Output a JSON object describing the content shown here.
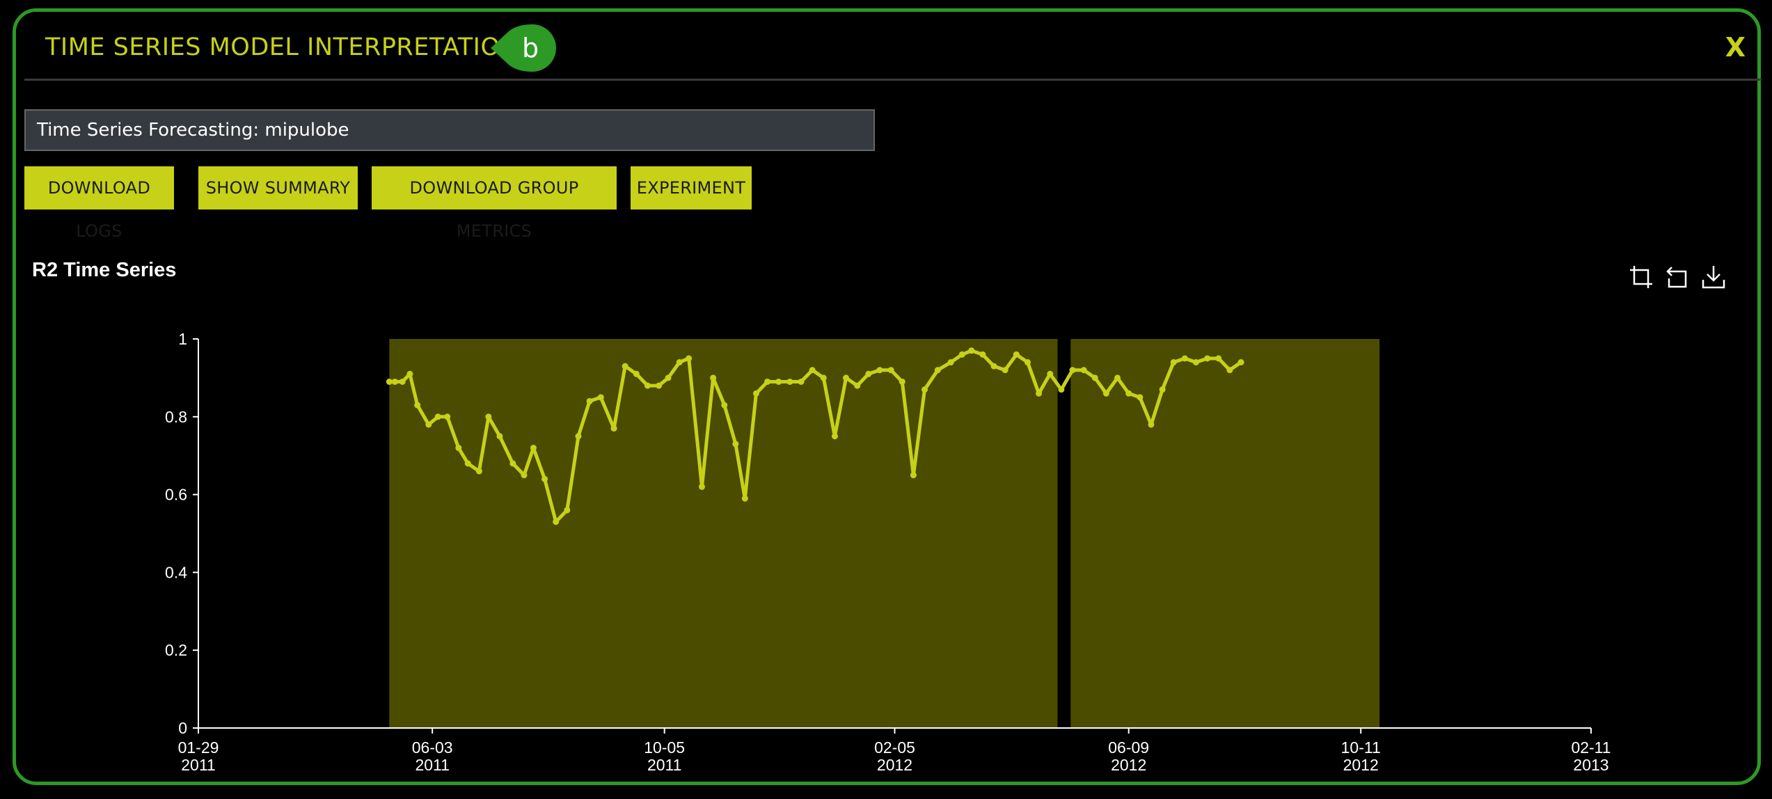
{
  "header": {
    "title": "TIME SERIES MODEL INTERPRETATION",
    "badge": "b",
    "close": "X"
  },
  "experiment_field": {
    "value": "Time Series Forecasting: mipulobe"
  },
  "toolbar": {
    "download_logs": "DOWNLOAD LOGS",
    "show_summary": "SHOW SUMMARY",
    "download_group_metrics": "DOWNLOAD GROUP METRICS",
    "experiment": "EXPERIMENT"
  },
  "chart_tools": [
    "zoom-select-icon",
    "zoom-reset-icon",
    "download-icon"
  ],
  "colors": {
    "accent": "#c7d117",
    "border": "#2c9a24",
    "shade": "#4b4c00"
  },
  "chart_data": {
    "type": "line",
    "title": "R2 Time Series",
    "xlabel": "",
    "ylabel": "",
    "xlim": [
      "2011-01-29",
      "2013-02-11"
    ],
    "ylim": [
      0,
      1
    ],
    "grid": false,
    "y_ticks": [
      "0",
      "0.2",
      "0.4",
      "0.6",
      "0.8",
      "1"
    ],
    "x_ticks": [
      {
        "date": "2011-01-29",
        "line1": "01-29",
        "line2": "2011"
      },
      {
        "date": "2011-06-03",
        "line1": "06-03",
        "line2": "2011"
      },
      {
        "date": "2011-10-05",
        "line1": "10-05",
        "line2": "2011"
      },
      {
        "date": "2012-02-05",
        "line1": "02-05",
        "line2": "2012"
      },
      {
        "date": "2012-06-09",
        "line1": "06-09",
        "line2": "2012"
      },
      {
        "date": "2012-10-11",
        "line1": "10-11",
        "line2": "2012"
      },
      {
        "date": "2013-02-11",
        "line1": "02-11",
        "line2": "2013"
      }
    ],
    "shaded_ranges": [
      {
        "start": "2011-05-11",
        "end": "2012-05-02"
      },
      {
        "start": "2012-05-09",
        "end": "2012-10-21"
      }
    ],
    "series": [
      {
        "color": "#c7d117",
        "points": [
          [
            "2011-05-11",
            0.89
          ],
          [
            "2011-05-14",
            0.89
          ],
          [
            "2011-05-18",
            0.89
          ],
          [
            "2011-05-22",
            0.91
          ],
          [
            "2011-05-26",
            0.83
          ],
          [
            "2011-06-01",
            0.78
          ],
          [
            "2011-06-06",
            0.8
          ],
          [
            "2011-06-11",
            0.8
          ],
          [
            "2011-06-17",
            0.72
          ],
          [
            "2011-06-22",
            0.68
          ],
          [
            "2011-06-28",
            0.66
          ],
          [
            "2011-07-03",
            0.8
          ],
          [
            "2011-07-09",
            0.75
          ],
          [
            "2011-07-16",
            0.68
          ],
          [
            "2011-07-22",
            0.65
          ],
          [
            "2011-07-27",
            0.72
          ],
          [
            "2011-08-02",
            0.64
          ],
          [
            "2011-08-08",
            0.53
          ],
          [
            "2011-08-14",
            0.56
          ],
          [
            "2011-08-20",
            0.75
          ],
          [
            "2011-08-26",
            0.84
          ],
          [
            "2011-09-01",
            0.85
          ],
          [
            "2011-09-08",
            0.77
          ],
          [
            "2011-09-14",
            0.93
          ],
          [
            "2011-09-20",
            0.91
          ],
          [
            "2011-09-26",
            0.88
          ],
          [
            "2011-10-02",
            0.88
          ],
          [
            "2011-10-07",
            0.9
          ],
          [
            "2011-10-13",
            0.94
          ],
          [
            "2011-10-18",
            0.95
          ],
          [
            "2011-10-25",
            0.62
          ],
          [
            "2011-10-31",
            0.9
          ],
          [
            "2011-11-06",
            0.83
          ],
          [
            "2011-11-12",
            0.73
          ],
          [
            "2011-11-17",
            0.59
          ],
          [
            "2011-11-23",
            0.86
          ],
          [
            "2011-11-29",
            0.89
          ],
          [
            "2011-12-05",
            0.89
          ],
          [
            "2011-12-11",
            0.89
          ],
          [
            "2011-12-17",
            0.89
          ],
          [
            "2011-12-23",
            0.92
          ],
          [
            "2011-12-29",
            0.9
          ],
          [
            "2012-01-04",
            0.75
          ],
          [
            "2012-01-10",
            0.9
          ],
          [
            "2012-01-16",
            0.88
          ],
          [
            "2012-01-22",
            0.91
          ],
          [
            "2012-01-28",
            0.92
          ],
          [
            "2012-02-03",
            0.92
          ],
          [
            "2012-02-09",
            0.89
          ],
          [
            "2012-02-15",
            0.65
          ],
          [
            "2012-02-21",
            0.87
          ],
          [
            "2012-02-28",
            0.92
          ],
          [
            "2012-03-06",
            0.94
          ],
          [
            "2012-03-12",
            0.96
          ],
          [
            "2012-03-17",
            0.97
          ],
          [
            "2012-03-23",
            0.96
          ],
          [
            "2012-03-29",
            0.93
          ],
          [
            "2012-04-04",
            0.92
          ],
          [
            "2012-04-10",
            0.96
          ],
          [
            "2012-04-16",
            0.94
          ],
          [
            "2012-04-22",
            0.86
          ],
          [
            "2012-04-28",
            0.91
          ],
          [
            "2012-05-04",
            0.87
          ],
          [
            "2012-05-10",
            0.92
          ],
          [
            "2012-05-16",
            0.92
          ],
          [
            "2012-05-22",
            0.9
          ],
          [
            "2012-05-28",
            0.86
          ],
          [
            "2012-06-03",
            0.9
          ],
          [
            "2012-06-09",
            0.86
          ],
          [
            "2012-06-15",
            0.85
          ],
          [
            "2012-06-21",
            0.78
          ],
          [
            "2012-06-27",
            0.87
          ],
          [
            "2012-07-03",
            0.94
          ],
          [
            "2012-07-09",
            0.95
          ],
          [
            "2012-07-15",
            0.94
          ],
          [
            "2012-07-21",
            0.95
          ],
          [
            "2012-07-27",
            0.95
          ],
          [
            "2012-08-02",
            0.92
          ],
          [
            "2012-08-08",
            0.94
          ]
        ]
      }
    ]
  }
}
